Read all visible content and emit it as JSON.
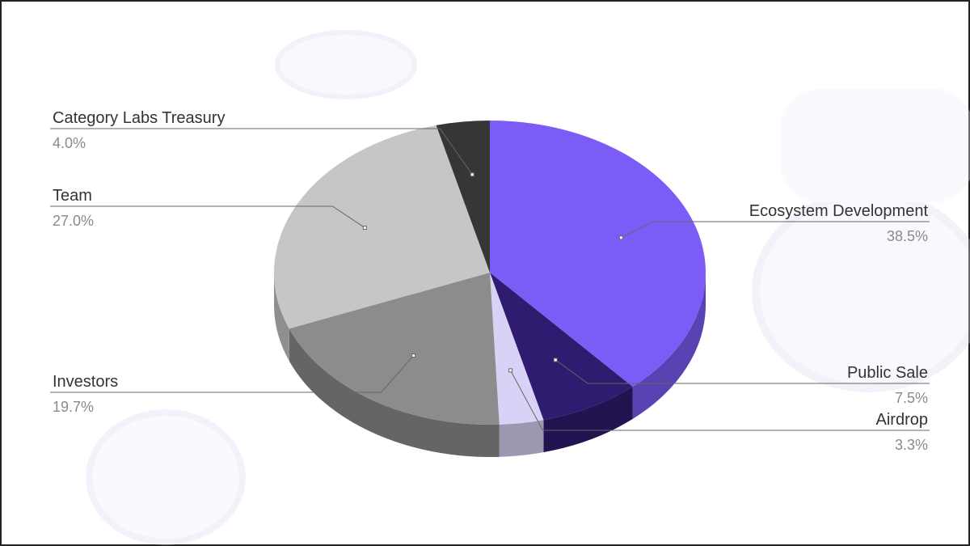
{
  "chart_data": {
    "type": "pie",
    "categories": [
      "Ecosystem Development",
      "Public Sale",
      "Airdrop",
      "Investors",
      "Team",
      "Category Labs Treasury"
    ],
    "values": [
      38.5,
      7.5,
      3.3,
      19.7,
      27.0,
      4.0
    ],
    "value_labels": [
      "38.5%",
      "7.5%",
      "3.3%",
      "19.7%",
      "27.0%",
      "4.0%"
    ],
    "colors": [
      "#7b5cf6",
      "#2f1b70",
      "#d8d3f6",
      "#8c8c8c",
      "#c6c6c6",
      "#363636"
    ]
  }
}
